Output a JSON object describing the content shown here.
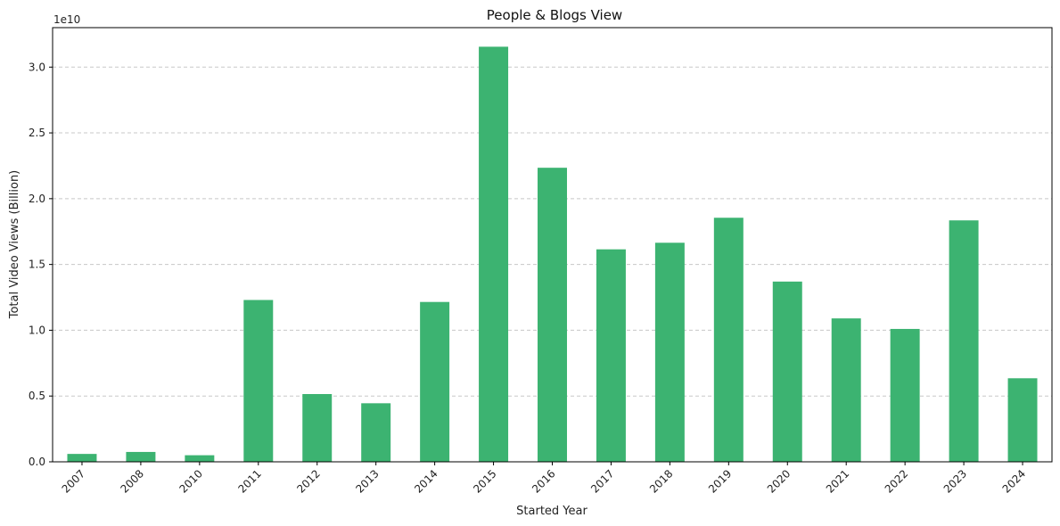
{
  "chart_data": {
    "type": "bar",
    "title": "People & Blogs View",
    "xlabel": "Started Year",
    "ylabel": "Total Video Views (Billion)",
    "offset_label": "1e10",
    "categories": [
      "2007",
      "2008",
      "2010",
      "2011",
      "2012",
      "2013",
      "2014",
      "2015",
      "2016",
      "2017",
      "2018",
      "2019",
      "2020",
      "2021",
      "2022",
      "2023",
      "2024"
    ],
    "values": [
      600000000,
      750000000,
      500000000,
      12300000000,
      5150000000,
      4450000000,
      12150000000,
      31550000000,
      22350000000,
      16150000000,
      16650000000,
      18550000000,
      13700000000,
      10900000000,
      10100000000,
      18350000000,
      6350000000
    ],
    "ylim": [
      0,
      33000000000
    ],
    "yticks": [
      0,
      5000000000,
      10000000000,
      15000000000,
      20000000000,
      25000000000,
      30000000000
    ],
    "ytick_labels": [
      "0.0",
      "0.5",
      "1.0",
      "1.5",
      "2.0",
      "2.5",
      "3.0"
    ],
    "grid": "y-dashed",
    "bar_color": "#3cb371"
  }
}
